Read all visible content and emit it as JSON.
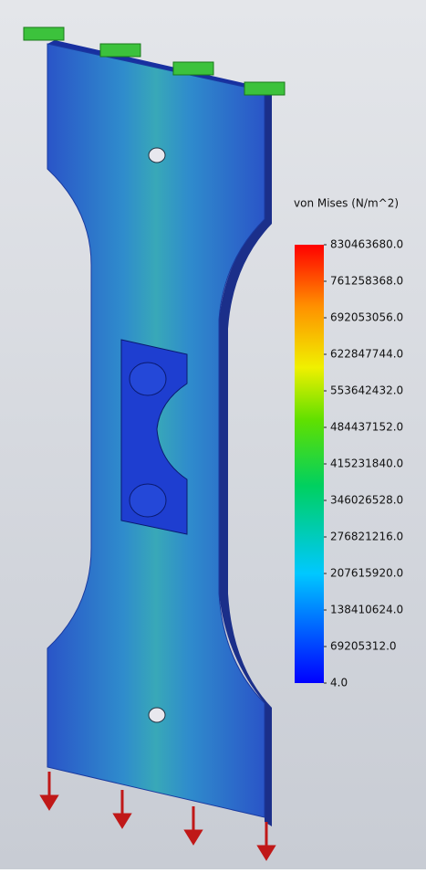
{
  "legend": {
    "title": "von Mises (N/m^2)",
    "labels": [
      "830463680.0",
      "761258368.0",
      "692053056.0",
      "622847744.0",
      "553642432.0",
      "484437152.0",
      "415231840.0",
      "346026528.0",
      "276821216.0",
      "207615920.0",
      "138410624.0",
      "69205312.0",
      "4.0"
    ]
  }
}
